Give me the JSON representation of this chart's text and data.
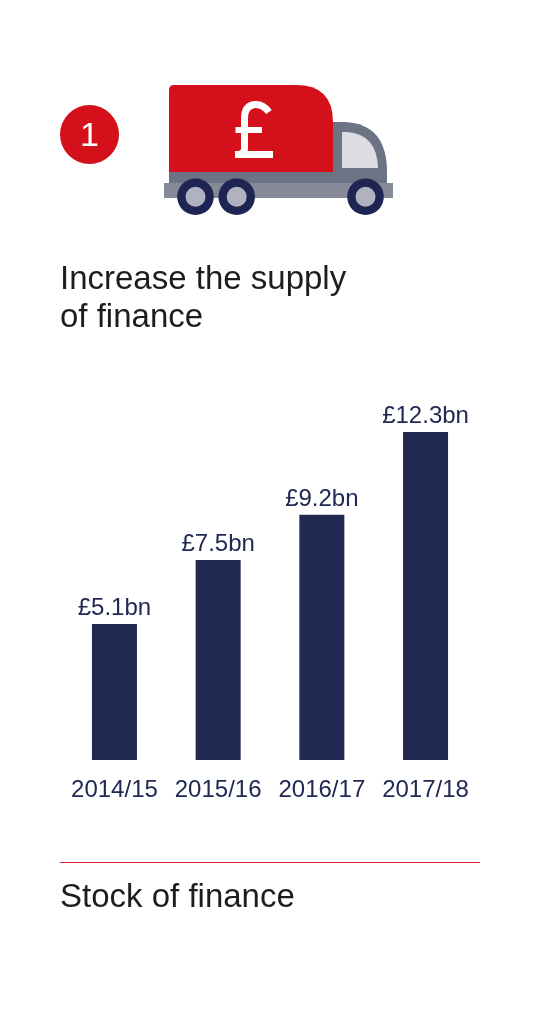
{
  "chart_data": {
    "type": "bar",
    "title": "Increase the supply of finance",
    "categories": [
      "2014/15",
      "2015/16",
      "2016/17",
      "2017/18"
    ],
    "values": [
      5.1,
      7.5,
      9.2,
      12.3
    ],
    "color": "#212952",
    "value_labels": [
      "£5.1bn",
      "£7.5bn",
      "£9.2bn",
      "£12.3bn"
    ],
    "annotations": [
      "1",
      "Stock of finance"
    ]
  }
}
